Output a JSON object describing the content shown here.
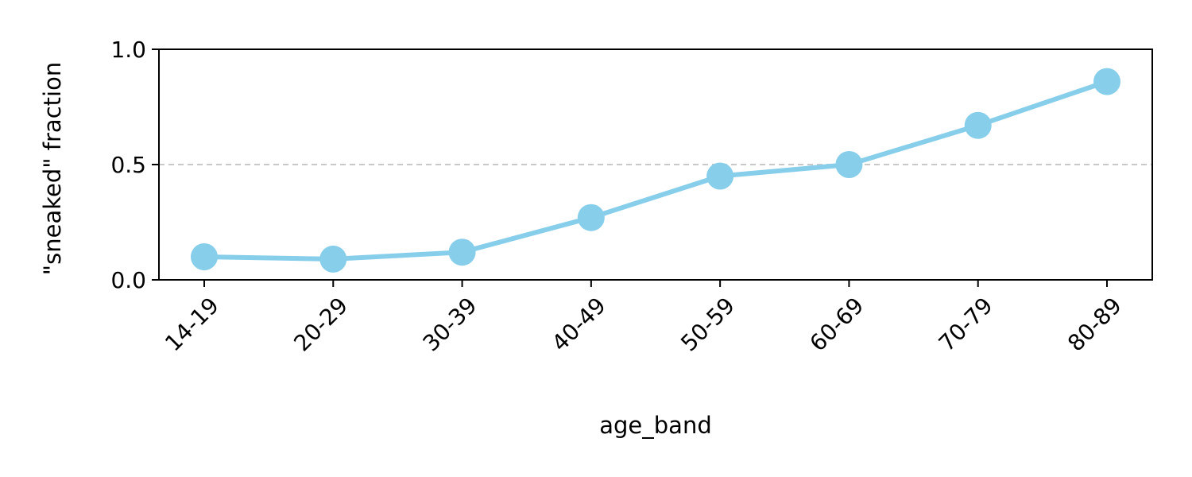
{
  "chart_data": {
    "type": "line",
    "title": "",
    "xlabel": "age_band",
    "ylabel": "\"sneaked\" fraction",
    "categories": [
      "14-19",
      "20-29",
      "30-39",
      "40-49",
      "50-59",
      "60-69",
      "70-79",
      "80-89"
    ],
    "series": [
      {
        "values": [
          0.1,
          0.09,
          0.12,
          0.27,
          0.45,
          0.5,
          0.67,
          0.86
        ],
        "color": "#87ceeb"
      }
    ],
    "ylim": [
      0,
      1
    ],
    "yticks": [
      0.0,
      0.5,
      1.0
    ],
    "ytick_labels": [
      "0.0",
      "0.5",
      "1.0"
    ],
    "reference_line": {
      "y": 0.5,
      "style": "dashed",
      "color": "#c8c8c8"
    },
    "grid": false,
    "legend": "none",
    "colors": {
      "line": "#87ceeb",
      "axis": "#000000",
      "reference": "#c8c8c8"
    }
  }
}
